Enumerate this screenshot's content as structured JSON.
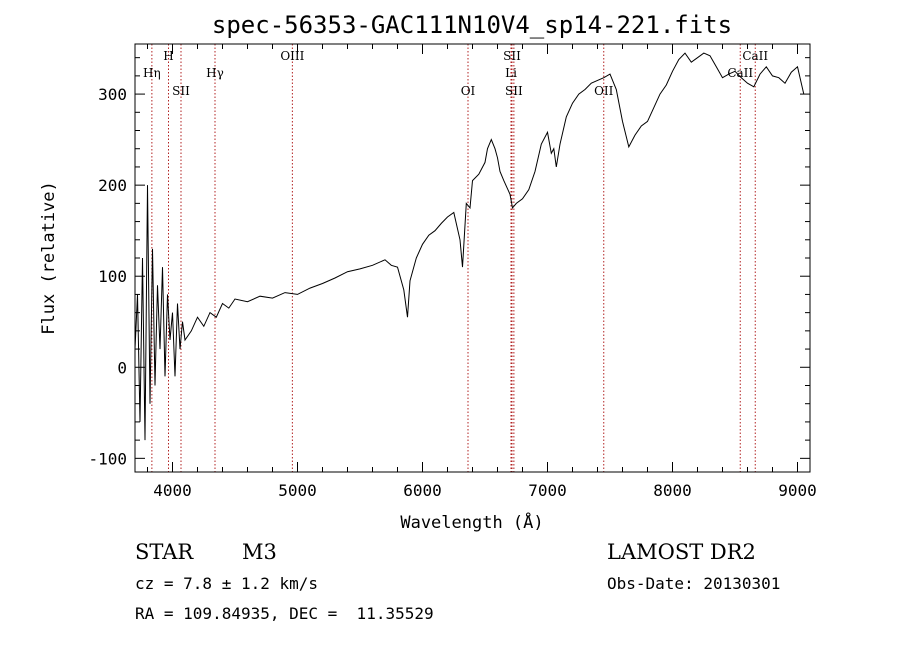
{
  "chart_data": {
    "type": "line",
    "title": "spec-56353-GAC111N10V4_sp14-221.fits",
    "xlabel": "Wavelength (Å)",
    "ylabel": "Flux (relative)",
    "xlim": [
      3700,
      9100
    ],
    "ylim": [
      -115,
      355
    ],
    "x_ticks": [
      4000,
      5000,
      6000,
      7000,
      8000,
      9000
    ],
    "y_ticks": [
      -100,
      0,
      100,
      200,
      300
    ],
    "grid": false,
    "series": [
      {
        "x": [
          3700,
          3720,
          3740,
          3760,
          3780,
          3800,
          3820,
          3840,
          3860,
          3880,
          3900,
          3920,
          3940,
          3960,
          3980,
          4000,
          4020,
          4040,
          4060,
          4080,
          4100,
          4150,
          4200,
          4250,
          4300,
          4350,
          4400,
          4450,
          4500,
          4600,
          4700,
          4800,
          4900,
          5000,
          5100,
          5200,
          5300,
          5400,
          5500,
          5600,
          5700,
          5750,
          5800,
          5850,
          5880,
          5900,
          5920,
          5950,
          6000,
          6050,
          6100,
          6150,
          6200,
          6250,
          6300,
          6320,
          6350,
          6380,
          6400,
          6450,
          6500,
          6520,
          6550,
          6580,
          6600,
          6620,
          6650,
          6700,
          6720,
          6750,
          6800,
          6850,
          6900,
          6950,
          7000,
          7030,
          7050,
          7070,
          7100,
          7150,
          7200,
          7250,
          7300,
          7350,
          7400,
          7450,
          7500,
          7550,
          7600,
          7650,
          7700,
          7750,
          7800,
          7850,
          7900,
          7950,
          8000,
          8050,
          8100,
          8150,
          8200,
          8250,
          8300,
          8350,
          8400,
          8450,
          8500,
          8550,
          8600,
          8650,
          8700,
          8750,
          8800,
          8850,
          8900,
          8950,
          9000,
          9050
        ],
        "y": [
          20,
          80,
          -60,
          120,
          -80,
          200,
          -40,
          130,
          -20,
          90,
          20,
          110,
          -10,
          80,
          30,
          60,
          -10,
          70,
          20,
          50,
          30,
          40,
          55,
          45,
          60,
          55,
          70,
          65,
          75,
          72,
          78,
          76,
          82,
          80,
          87,
          92,
          98,
          105,
          108,
          112,
          118,
          112,
          110,
          85,
          55,
          95,
          105,
          120,
          135,
          145,
          150,
          158,
          165,
          170,
          140,
          110,
          180,
          175,
          205,
          212,
          225,
          240,
          250,
          240,
          230,
          215,
          205,
          190,
          175,
          180,
          185,
          195,
          215,
          245,
          258,
          235,
          240,
          220,
          245,
          275,
          290,
          300,
          305,
          312,
          315,
          318,
          322,
          305,
          270,
          242,
          255,
          265,
          270,
          285,
          300,
          310,
          325,
          338,
          345,
          335,
          340,
          345,
          342,
          330,
          318,
          322,
          325,
          318,
          312,
          308,
          322,
          330,
          320,
          318,
          312,
          324,
          330,
          300
        ]
      }
    ],
    "line_labels": [
      {
        "name": "Hη",
        "x": 3835,
        "row": 0
      },
      {
        "name": "H",
        "x": 3968,
        "row": -1
      },
      {
        "name": "SII",
        "x": 4068,
        "row": 1
      },
      {
        "name": "Hγ",
        "x": 4340,
        "row": 0
      },
      {
        "name": "OIII",
        "x": 4959,
        "row": -1
      },
      {
        "name": "OI",
        "x": 6364,
        "row": 1
      },
      {
        "name": "SII",
        "x": 6716,
        "row": -1
      },
      {
        "name": "Li",
        "x": 6708,
        "row": 0
      },
      {
        "name": "SII",
        "x": 6731,
        "row": 1
      },
      {
        "name": "OII",
        "x": 7450,
        "row": 1
      },
      {
        "name": "CaII",
        "x": 8542,
        "row": 0
      },
      {
        "name": "CaII",
        "x": 8662,
        "row": -1
      }
    ]
  },
  "info": {
    "object_class": "STAR",
    "subclass": "M3",
    "survey": "LAMOST DR2",
    "cz": "cz = 7.8 ± 1.2 km/s",
    "obs_date": "Obs-Date: 20130301",
    "coords": "RA = 109.84935, DEC =  11.35529"
  },
  "colors": {
    "spectrum": "#000000",
    "line_markers": "#b22222"
  }
}
